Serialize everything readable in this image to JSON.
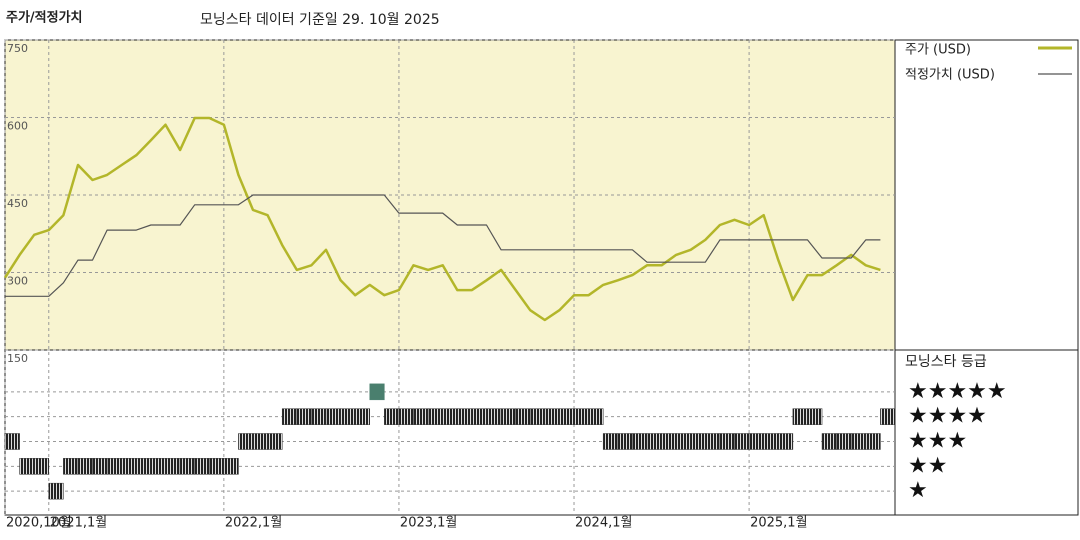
{
  "chart_data": [
    {
      "type": "line",
      "title": "주가/적정가치",
      "subtitle": "모닝스타 데이터 기준일 29. 10월 2025",
      "x": [
        "2020-10",
        "2020-11",
        "2020-12",
        "2021-01",
        "2021-02",
        "2021-03",
        "2021-04",
        "2021-05",
        "2021-06",
        "2021-07",
        "2021-08",
        "2021-09",
        "2021-10",
        "2021-11",
        "2021-12",
        "2022-01",
        "2022-02",
        "2022-03",
        "2022-04",
        "2022-05",
        "2022-06",
        "2022-07",
        "2022-08",
        "2022-09",
        "2022-10",
        "2022-11",
        "2022-12",
        "2023-01",
        "2023-02",
        "2023-03",
        "2023-04",
        "2023-05",
        "2023-06",
        "2023-07",
        "2023-08",
        "2023-09",
        "2023-10",
        "2023-11",
        "2023-12",
        "2024-01",
        "2024-02",
        "2024-03",
        "2024-04",
        "2024-05",
        "2024-06",
        "2024-07",
        "2024-08",
        "2024-09",
        "2024-10",
        "2024-11",
        "2024-12",
        "2025-01",
        "2025-02",
        "2025-03",
        "2025-04",
        "2025-05",
        "2025-06",
        "2025-07",
        "2025-08",
        "2025-09",
        "2025-10"
      ],
      "series": [
        {
          "name": "주가 (USD)",
          "color": "#b3b62a",
          "values": [
            290,
            334,
            373,
            382,
            411,
            508,
            479,
            489,
            508,
            527,
            556,
            586,
            537,
            599,
            599,
            586,
            489,
            421,
            411,
            353,
            305,
            314,
            344,
            285,
            256,
            276,
            256,
            266,
            314,
            305,
            314,
            266,
            266,
            285,
            305,
            266,
            227,
            208,
            227,
            256,
            256,
            276,
            285,
            295,
            314,
            314,
            334,
            344,
            363,
            392,
            402,
            392,
            411,
            324,
            247,
            295,
            295,
            314,
            334,
            314,
            305
          ]
        },
        {
          "name": "적정가치 (USD)",
          "color": "#555555",
          "values": [
            254,
            254,
            254,
            254,
            280,
            324,
            324,
            382,
            382,
            382,
            392,
            392,
            392,
            431,
            431,
            431,
            431,
            450,
            450,
            450,
            450,
            450,
            450,
            450,
            450,
            450,
            450,
            415,
            415,
            415,
            415,
            392,
            392,
            392,
            344,
            344,
            344,
            344,
            344,
            344,
            344,
            344,
            344,
            344,
            320,
            320,
            320,
            320,
            320,
            363,
            363,
            363,
            363,
            363,
            363,
            363,
            328,
            328,
            328,
            363,
            363
          ]
        }
      ],
      "xlim": [
        "2020-10",
        "2025-11"
      ],
      "xticks": [
        {
          "value": "2020-10",
          "label": "2020,10월"
        },
        {
          "value": "2021-01",
          "label": "2021,1월"
        },
        {
          "value": "2022-01",
          "label": "2022,1월"
        },
        {
          "value": "2023-01",
          "label": "2023,1월"
        },
        {
          "value": "2024-01",
          "label": "2024,1월"
        },
        {
          "value": "2025-01",
          "label": "2025,1월"
        }
      ],
      "ylim": [
        150,
        750
      ],
      "yticks": [
        150,
        300,
        450,
        600,
        750
      ],
      "grid": true
    },
    {
      "type": "rating",
      "title": "모닝스타 등급",
      "color": "#333333",
      "top_color": "#4a7f6e",
      "values": [
        3,
        2,
        2,
        1,
        2,
        2,
        2,
        2,
        2,
        2,
        2,
        2,
        2,
        2,
        2,
        2,
        3,
        3,
        3,
        4,
        4,
        4,
        4,
        4,
        4,
        5,
        4,
        4,
        4,
        4,
        4,
        4,
        4,
        4,
        4,
        4,
        4,
        4,
        4,
        4,
        4,
        3,
        3,
        3,
        3,
        3,
        3,
        3,
        3,
        3,
        3,
        3,
        3,
        3,
        4,
        4,
        3,
        3,
        3,
        3,
        4
      ],
      "ylim": [
        0,
        6
      ],
      "yticks": [
        {
          "value": 5,
          "label": "★★★★★"
        },
        {
          "value": 4,
          "label": "★★★★"
        },
        {
          "value": 3,
          "label": "★★★"
        },
        {
          "value": 2,
          "label": "★★"
        },
        {
          "value": 1,
          "label": "★"
        }
      ]
    }
  ]
}
